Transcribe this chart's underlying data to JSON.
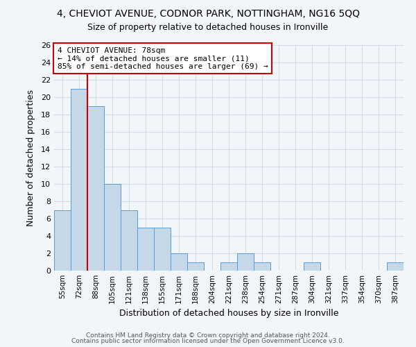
{
  "title": "4, CHEVIOT AVENUE, CODNOR PARK, NOTTINGHAM, NG16 5QQ",
  "subtitle": "Size of property relative to detached houses in Ironville",
  "xlabel": "Distribution of detached houses by size in Ironville",
  "ylabel": "Number of detached properties",
  "bin_labels": [
    "55sqm",
    "72sqm",
    "88sqm",
    "105sqm",
    "121sqm",
    "138sqm",
    "155sqm",
    "171sqm",
    "188sqm",
    "204sqm",
    "221sqm",
    "238sqm",
    "254sqm",
    "271sqm",
    "287sqm",
    "304sqm",
    "321sqm",
    "337sqm",
    "354sqm",
    "370sqm",
    "387sqm"
  ],
  "bar_values": [
    7,
    21,
    19,
    10,
    7,
    5,
    5,
    2,
    1,
    0,
    1,
    2,
    1,
    0,
    0,
    1,
    0,
    0,
    0,
    0,
    1
  ],
  "bar_color": "#c5d8e8",
  "bar_edge_color": "#5b9bd5",
  "ylim": [
    0,
    26
  ],
  "yticks": [
    0,
    2,
    4,
    6,
    8,
    10,
    12,
    14,
    16,
    18,
    20,
    22,
    24,
    26
  ],
  "vline_x": 1.5,
  "vline_color": "#cc0000",
  "annotation_text": "4 CHEVIOT AVENUE: 78sqm\n← 14% of detached houses are smaller (11)\n85% of semi-detached houses are larger (69) →",
  "annotation_box_color": "#cc0000",
  "footer1": "Contains HM Land Registry data © Crown copyright and database right 2024.",
  "footer2": "Contains public sector information licensed under the Open Government Licence v3.0.",
  "background_color": "#f2f6fa",
  "grid_color": "#d0dce8",
  "title_fontsize": 10,
  "subtitle_fontsize": 9
}
